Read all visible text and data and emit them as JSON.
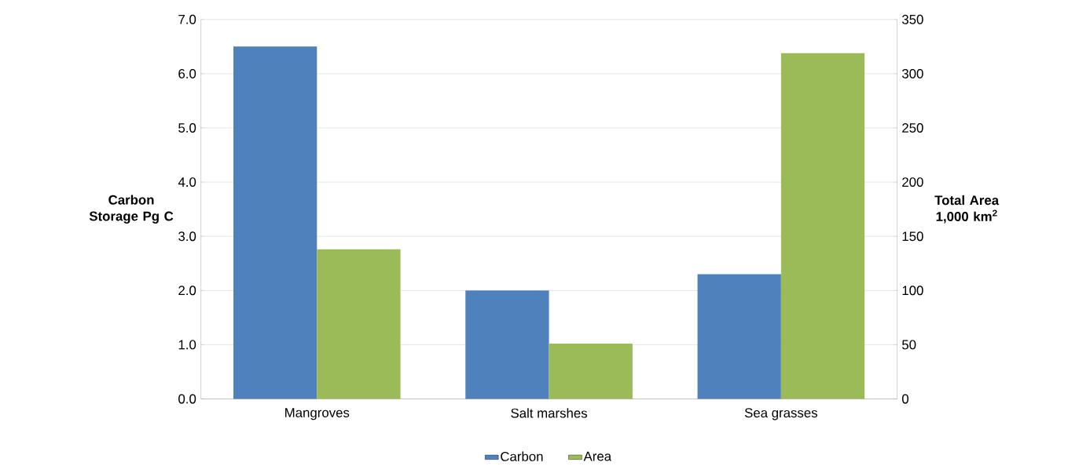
{
  "chart_data": {
    "type": "bar",
    "categories": [
      "Mangroves",
      "Salt marshes",
      "Sea grasses"
    ],
    "series": [
      {
        "name": "Carbon",
        "color": "#4f81bd",
        "values": [
          6.5,
          2.0,
          2.3
        ],
        "axis": "y"
      },
      {
        "name": "Area",
        "color": "#9bbb59",
        "values": [
          138,
          51,
          319
        ],
        "axis": "y2"
      }
    ],
    "ylabel": "Carbon Storage Pg C",
    "y2label": "Total Area 1,000 km$^{2}$",
    "ylim": [
      0,
      7
    ],
    "yticks": [
      {
        "value": 0,
        "label": "0.0"
      },
      {
        "value": 1,
        "label": "1.0"
      },
      {
        "value": 2,
        "label": "2.0"
      },
      {
        "value": 3,
        "label": "3.0"
      },
      {
        "value": 4,
        "label": "4.0"
      },
      {
        "value": 5,
        "label": "5.0"
      },
      {
        "value": 6,
        "label": "6.0"
      },
      {
        "value": 7,
        "label": "7.0"
      }
    ],
    "y2lim": [
      0,
      350
    ],
    "y2ticks": [
      0,
      50,
      100,
      150,
      200,
      250,
      300,
      350
    ],
    "grid": "y",
    "legend": "bottom"
  }
}
